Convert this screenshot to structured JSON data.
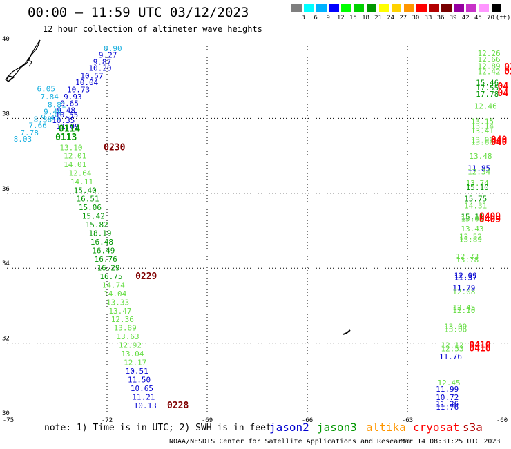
{
  "header": {
    "title": "00:00 – 11:59 UTC 03/12/2023",
    "subtitle": "12 hour collection of altimeter wave heights"
  },
  "legend": {
    "swatch_colors": [
      "#7f7f7f",
      "#00ffff",
      "#00b2ff",
      "#0000ff",
      "#00ff00",
      "#00d200",
      "#009600",
      "#ffff00",
      "#ffd200",
      "#ff9600",
      "#ff0000",
      "#b20000",
      "#780000",
      "#9600a0",
      "#c832c8",
      "#ff96ff",
      "#000000"
    ],
    "scale_labels": [
      "3",
      "6",
      "9",
      "12",
      "15",
      "18",
      "21",
      "24",
      "27",
      "30",
      "33",
      "36",
      "39",
      "42",
      "45",
      "70",
      "(ft)"
    ]
  },
  "footer": {
    "note": "note:  1) Time is in UTC;  2) SWH is in feet",
    "satellites": [
      {
        "name": "jason2",
        "color": "#0000d0"
      },
      {
        "name": "jason3",
        "color": "#009600"
      },
      {
        "name": "altika",
        "color": "#ff9600"
      },
      {
        "name": "cryosat",
        "color": "#ff0000"
      },
      {
        "name": "s3a",
        "color": "#b20000"
      }
    ],
    "credit": "NOAA/NESDIS Center for Satellite Applications and Research",
    "timestamp": "Mar 14 08:31:25 UTC 2023"
  },
  "chart_data": {
    "type": "scatter",
    "xlim": [
      -75,
      -60
    ],
    "ylim": [
      30,
      40
    ],
    "x_ticks": [
      "-75",
      "-72",
      "-69",
      "-66",
      "-63",
      "-60"
    ],
    "y_ticks": [
      "30",
      "32",
      "34",
      "36",
      "38",
      "40"
    ],
    "grid": true,
    "labels": [
      {
        "lon": -72.1,
        "lat": 39.8,
        "text": "8.90",
        "color": "#1ab0e0"
      },
      {
        "lon": -72.25,
        "lat": 39.62,
        "text": "9.27",
        "color": "#0000d0"
      },
      {
        "lon": -72.42,
        "lat": 39.44,
        "text": "9.87",
        "color": "#0000d0"
      },
      {
        "lon": -72.55,
        "lat": 39.27,
        "text": "10.20",
        "color": "#0000d0"
      },
      {
        "lon": -72.8,
        "lat": 39.07,
        "text": "10.57",
        "color": "#0000d0"
      },
      {
        "lon": -72.95,
        "lat": 38.89,
        "text": "10.04",
        "color": "#0000d0"
      },
      {
        "lon": -73.2,
        "lat": 38.7,
        "text": "10.73",
        "color": "#0000d0"
      },
      {
        "lon": -73.3,
        "lat": 38.51,
        "text": "9.93",
        "color": "#0000d0"
      },
      {
        "lon": -73.4,
        "lat": 38.33,
        "text": "9.65",
        "color": "#0000d0"
      },
      {
        "lon": -73.5,
        "lat": 38.15,
        "text": "9.48",
        "color": "#0000d0"
      },
      {
        "lon": -73.55,
        "lat": 38.03,
        "text": "10.55",
        "color": "#0000d0"
      },
      {
        "lon": -73.65,
        "lat": 37.88,
        "text": "10.35",
        "color": "#0000d0"
      },
      {
        "lon": -73.52,
        "lat": 37.71,
        "text": "11.09",
        "color": "#0000d0"
      },
      {
        "lon": -74.1,
        "lat": 38.72,
        "text": "6.05",
        "color": "#1ab0e0"
      },
      {
        "lon": -74.0,
        "lat": 38.51,
        "text": "7.84",
        "color": "#1ab0e0"
      },
      {
        "lon": -73.78,
        "lat": 38.29,
        "text": "8.81",
        "color": "#1ab0e0"
      },
      {
        "lon": -73.9,
        "lat": 38.11,
        "text": "9.46",
        "color": "#1ab0e0"
      },
      {
        "lon": -73.98,
        "lat": 37.95,
        "text": "9.45",
        "color": "#1ab0e0"
      },
      {
        "lon": -74.2,
        "lat": 37.91,
        "text": "8.38",
        "color": "#1ab0e0"
      },
      {
        "lon": -74.35,
        "lat": 37.74,
        "text": "7.66",
        "color": "#1ab0e0"
      },
      {
        "lon": -74.6,
        "lat": 37.55,
        "text": "7.78",
        "color": "#1ab0e0"
      },
      {
        "lon": -74.8,
        "lat": 37.38,
        "text": "8.03",
        "color": "#1ab0e0"
      },
      {
        "lon": -73.45,
        "lat": 37.65,
        "text": "0114",
        "color": "#009600"
      },
      {
        "lon": -73.55,
        "lat": 37.42,
        "text": "0113",
        "color": "#009600"
      },
      {
        "lon": -72.1,
        "lat": 37.15,
        "text": "0230",
        "color": "#800000"
      },
      {
        "lon": -73.42,
        "lat": 37.15,
        "text": "13.10",
        "color": "#66dd44"
      },
      {
        "lon": -73.3,
        "lat": 36.93,
        "text": "12.01",
        "color": "#66dd44"
      },
      {
        "lon": -73.3,
        "lat": 36.7,
        "text": "14.01",
        "color": "#66dd44"
      },
      {
        "lon": -73.15,
        "lat": 36.47,
        "text": "12.64",
        "color": "#66dd44"
      },
      {
        "lon": -73.1,
        "lat": 36.24,
        "text": "14.11",
        "color": "#66dd44"
      },
      {
        "lon": -73.0,
        "lat": 36.01,
        "text": "15.40",
        "color": "#009600"
      },
      {
        "lon": -72.92,
        "lat": 35.78,
        "text": "16.51",
        "color": "#009600"
      },
      {
        "lon": -72.85,
        "lat": 35.55,
        "text": "15.06",
        "color": "#009600"
      },
      {
        "lon": -72.75,
        "lat": 35.32,
        "text": "15.42",
        "color": "#009600"
      },
      {
        "lon": -72.65,
        "lat": 35.09,
        "text": "15.82",
        "color": "#009600"
      },
      {
        "lon": -72.55,
        "lat": 34.86,
        "text": "18.19",
        "color": "#009600"
      },
      {
        "lon": -72.5,
        "lat": 34.63,
        "text": "16.48",
        "color": "#009600"
      },
      {
        "lon": -72.45,
        "lat": 34.4,
        "text": "16.49",
        "color": "#009600"
      },
      {
        "lon": -72.38,
        "lat": 34.17,
        "text": "16.76",
        "color": "#009600"
      },
      {
        "lon": -72.3,
        "lat": 33.94,
        "text": "16.29",
        "color": "#009600"
      },
      {
        "lon": -72.22,
        "lat": 33.71,
        "text": "16.75",
        "color": "#009600"
      },
      {
        "lon": -71.15,
        "lat": 33.71,
        "text": "0229",
        "color": "#800000"
      },
      {
        "lon": -72.15,
        "lat": 33.48,
        "text": "14.74",
        "color": "#66dd44"
      },
      {
        "lon": -72.1,
        "lat": 33.25,
        "text": "14.04",
        "color": "#66dd44"
      },
      {
        "lon": -72.02,
        "lat": 33.02,
        "text": "13.33",
        "color": "#66dd44"
      },
      {
        "lon": -71.95,
        "lat": 32.79,
        "text": "13.47",
        "color": "#66dd44"
      },
      {
        "lon": -71.88,
        "lat": 32.56,
        "text": "12.36",
        "color": "#66dd44"
      },
      {
        "lon": -71.8,
        "lat": 32.33,
        "text": "13.89",
        "color": "#66dd44"
      },
      {
        "lon": -71.72,
        "lat": 32.1,
        "text": "13.63",
        "color": "#66dd44"
      },
      {
        "lon": -71.65,
        "lat": 31.87,
        "text": "12.92",
        "color": "#66dd44"
      },
      {
        "lon": -71.58,
        "lat": 31.64,
        "text": "13.04",
        "color": "#66dd44"
      },
      {
        "lon": -71.5,
        "lat": 31.41,
        "text": "12.17",
        "color": "#66dd44"
      },
      {
        "lon": -71.45,
        "lat": 31.18,
        "text": "10.51",
        "color": "#0000d0"
      },
      {
        "lon": -71.38,
        "lat": 30.95,
        "text": "11.50",
        "color": "#0000d0"
      },
      {
        "lon": -71.3,
        "lat": 30.72,
        "text": "10.65",
        "color": "#0000d0"
      },
      {
        "lon": -71.25,
        "lat": 30.49,
        "text": "11.21",
        "color": "#0000d0"
      },
      {
        "lon": -71.2,
        "lat": 30.26,
        "text": "10.13",
        "color": "#0000d0"
      },
      {
        "lon": -70.2,
        "lat": 30.26,
        "text": "0228",
        "color": "#800000"
      },
      {
        "lon": -60.9,
        "lat": 39.67,
        "text": "12.26",
        "color": "#66dd44"
      },
      {
        "lon": -60.9,
        "lat": 39.5,
        "text": "12.66",
        "color": "#66dd44"
      },
      {
        "lon": -60.9,
        "lat": 39.33,
        "text": "12.89",
        "color": "#66dd44"
      },
      {
        "lon": -60.9,
        "lat": 39.18,
        "text": "12.42",
        "color": "#66dd44"
      },
      {
        "lon": -60.1,
        "lat": 39.3,
        "text": "02",
        "color": "#ff0000"
      },
      {
        "lon": -60.1,
        "lat": 39.18,
        "text": "02",
        "color": "#ff0000"
      },
      {
        "lon": -60.95,
        "lat": 38.88,
        "text": "15.46",
        "color": "#009600"
      },
      {
        "lon": -60.95,
        "lat": 38.75,
        "text": "17.55",
        "color": "#009600"
      },
      {
        "lon": -60.95,
        "lat": 38.58,
        "text": "17.78",
        "color": "#009600"
      },
      {
        "lon": -60.3,
        "lat": 38.78,
        "text": "04",
        "color": "#ff0000"
      },
      {
        "lon": -60.3,
        "lat": 38.6,
        "text": "04",
        "color": "#ff0000"
      },
      {
        "lon": -61.0,
        "lat": 38.26,
        "text": "12.46",
        "color": "#66dd44"
      },
      {
        "lon": -61.1,
        "lat": 37.85,
        "text": "13.15",
        "color": "#66dd44"
      },
      {
        "lon": -61.1,
        "lat": 37.72,
        "text": "13.14",
        "color": "#66dd44"
      },
      {
        "lon": -61.1,
        "lat": 37.6,
        "text": "13.41",
        "color": "#66dd44"
      },
      {
        "lon": -61.1,
        "lat": 37.35,
        "text": "13.99",
        "color": "#66dd44"
      },
      {
        "lon": -61.1,
        "lat": 37.3,
        "text": "13.86",
        "color": "#66dd44"
      },
      {
        "lon": -60.5,
        "lat": 37.35,
        "text": "040",
        "color": "#ff0000"
      },
      {
        "lon": -60.5,
        "lat": 37.29,
        "text": "040",
        "color": "#ff0000"
      },
      {
        "lon": -61.15,
        "lat": 36.92,
        "text": "13.48",
        "color": "#66dd44"
      },
      {
        "lon": -61.2,
        "lat": 36.6,
        "text": "11.85",
        "color": "#0000d0"
      },
      {
        "lon": -61.2,
        "lat": 36.5,
        "text": "12.34",
        "color": "#66dd44"
      },
      {
        "lon": -61.25,
        "lat": 36.2,
        "text": "13.74",
        "color": "#66dd44"
      },
      {
        "lon": -61.25,
        "lat": 36.09,
        "text": "15.10",
        "color": "#009600"
      },
      {
        "lon": -61.3,
        "lat": 35.78,
        "text": "15.75",
        "color": "#009600"
      },
      {
        "lon": -61.3,
        "lat": 35.6,
        "text": "14.31",
        "color": "#66dd44"
      },
      {
        "lon": -61.4,
        "lat": 35.3,
        "text": "15.11",
        "color": "#009600"
      },
      {
        "lon": -61.4,
        "lat": 35.25,
        "text": "15.05",
        "color": "#66dd44"
      },
      {
        "lon": -60.85,
        "lat": 35.3,
        "text": "0409",
        "color": "#ff0000"
      },
      {
        "lon": -60.85,
        "lat": 35.22,
        "text": "0409",
        "color": "#ff0000"
      },
      {
        "lon": -61.4,
        "lat": 34.98,
        "text": "13.43",
        "color": "#66dd44"
      },
      {
        "lon": -61.45,
        "lat": 34.77,
        "text": "13.52",
        "color": "#66dd44"
      },
      {
        "lon": -61.45,
        "lat": 34.7,
        "text": "13.89",
        "color": "#66dd44"
      },
      {
        "lon": -61.55,
        "lat": 34.24,
        "text": "12.73",
        "color": "#66dd44"
      },
      {
        "lon": -61.55,
        "lat": 34.15,
        "text": "13.78",
        "color": "#66dd44"
      },
      {
        "lon": -61.6,
        "lat": 33.74,
        "text": "12.09",
        "color": "#0000d0"
      },
      {
        "lon": -61.6,
        "lat": 33.68,
        "text": "11.37",
        "color": "#0000d0"
      },
      {
        "lon": -61.65,
        "lat": 33.4,
        "text": "11.79",
        "color": "#0000d0"
      },
      {
        "lon": -61.65,
        "lat": 33.3,
        "text": "12.08",
        "color": "#66dd44"
      },
      {
        "lon": -61.65,
        "lat": 32.88,
        "text": "12.45",
        "color": "#66dd44"
      },
      {
        "lon": -61.65,
        "lat": 32.8,
        "text": "12.10",
        "color": "#66dd44"
      },
      {
        "lon": -61.9,
        "lat": 32.37,
        "text": "13.09",
        "color": "#66dd44"
      },
      {
        "lon": -61.9,
        "lat": 32.3,
        "text": "13.06",
        "color": "#66dd44"
      },
      {
        "lon": -61.15,
        "lat": 31.87,
        "text": "0410",
        "color": "#ff0000"
      },
      {
        "lon": -61.15,
        "lat": 31.78,
        "text": "0410",
        "color": "#ff0000"
      },
      {
        "lon": -62.0,
        "lat": 31.87,
        "text": "12.12",
        "color": "#66dd44"
      },
      {
        "lon": -62.0,
        "lat": 31.78,
        "text": "12.53",
        "color": "#66dd44"
      },
      {
        "lon": -62.05,
        "lat": 31.57,
        "text": "11.76",
        "color": "#0000d0"
      },
      {
        "lon": -62.1,
        "lat": 30.87,
        "text": "12.45",
        "color": "#66dd44"
      },
      {
        "lon": -62.15,
        "lat": 30.7,
        "text": "11.99",
        "color": "#0000d0"
      },
      {
        "lon": -62.15,
        "lat": 30.48,
        "text": "10.72",
        "color": "#0000d0"
      },
      {
        "lon": -62.15,
        "lat": 30.3,
        "text": "11.26",
        "color": "#0000d0"
      },
      {
        "lon": -62.15,
        "lat": 30.22,
        "text": "11.76",
        "color": "#0000d0"
      }
    ]
  }
}
